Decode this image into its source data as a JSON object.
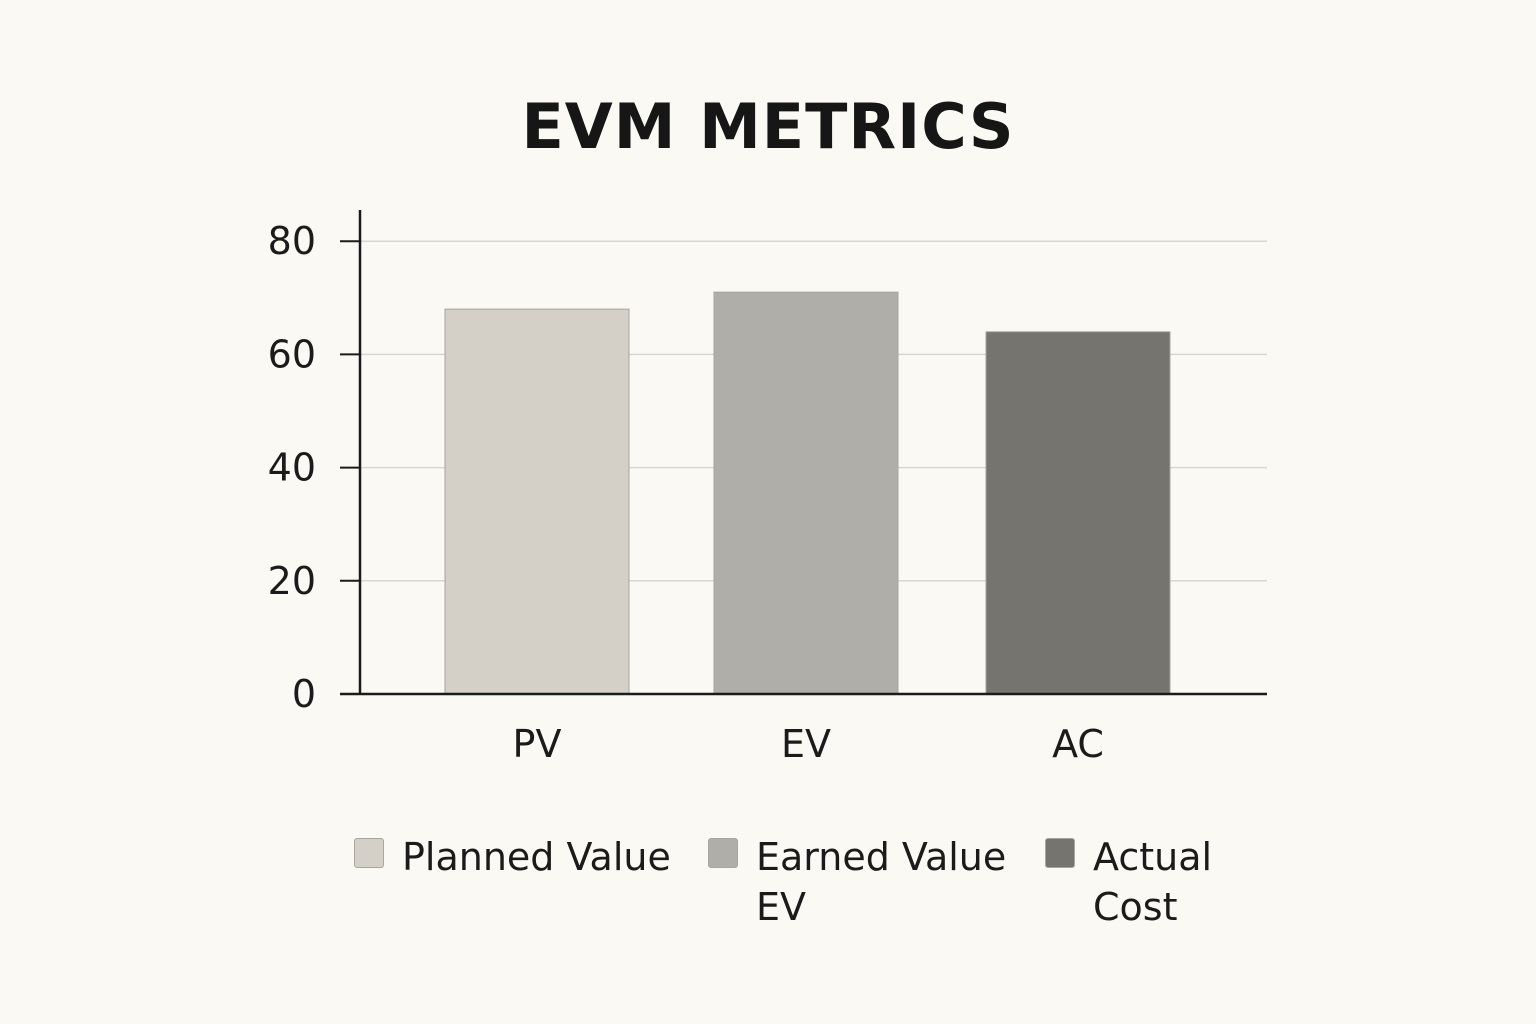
{
  "chart_data": {
    "type": "bar",
    "title": "EVM METRICS",
    "categories": [
      "PV",
      "EV",
      "AC"
    ],
    "values": [
      68,
      71,
      64
    ],
    "colors": [
      "#d4cfc7",
      "#b0aea8",
      "#75746f"
    ],
    "ylim": [
      0,
      85
    ],
    "yticks": [
      0,
      20,
      40,
      60,
      80
    ],
    "grid": true,
    "legend_position": "bottom",
    "legend": [
      {
        "label": "Planned Value",
        "color": "#d4cfc7"
      },
      {
        "label": "Earned Value EV",
        "color": "#b0aea8"
      },
      {
        "label": "Actual Cost",
        "color": "#75746f"
      }
    ]
  }
}
